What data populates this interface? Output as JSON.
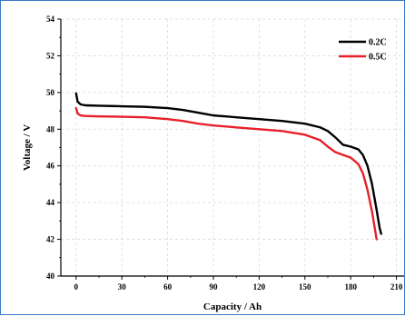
{
  "chart_data": {
    "type": "line",
    "xlabel": "Capacity / Ah",
    "ylabel": "Voltage / V",
    "xlim": [
      -10,
      215
    ],
    "ylim": [
      40,
      54
    ],
    "x_ticks": [
      0,
      30,
      60,
      90,
      120,
      150,
      180,
      210
    ],
    "y_ticks": [
      40,
      42,
      44,
      46,
      48,
      50,
      52,
      54
    ],
    "grid": true,
    "legend_position": "top-right",
    "series": [
      {
        "name": "0.2C",
        "color": "#000000",
        "x": [
          0,
          1,
          3,
          6,
          15,
          30,
          45,
          60,
          70,
          80,
          90,
          105,
          120,
          135,
          150,
          160,
          165,
          170,
          175,
          180,
          185,
          188,
          191,
          194,
          197,
          199,
          200
        ],
        "y": [
          49.95,
          49.5,
          49.35,
          49.3,
          49.28,
          49.25,
          49.22,
          49.15,
          49.05,
          48.9,
          48.75,
          48.65,
          48.55,
          48.45,
          48.3,
          48.1,
          47.9,
          47.55,
          47.15,
          47.05,
          46.9,
          46.6,
          46.0,
          45.0,
          43.6,
          42.6,
          42.3
        ]
      },
      {
        "name": "0.5C",
        "color": "#e8202a",
        "x": [
          0,
          1,
          3,
          6,
          15,
          30,
          45,
          60,
          70,
          80,
          90,
          105,
          120,
          135,
          150,
          160,
          165,
          170,
          175,
          180,
          185,
          188,
          191,
          194,
          196,
          197
        ],
        "y": [
          49.15,
          48.85,
          48.75,
          48.72,
          48.7,
          48.68,
          48.65,
          48.55,
          48.45,
          48.3,
          48.2,
          48.1,
          48.0,
          47.9,
          47.7,
          47.4,
          47.05,
          46.75,
          46.6,
          46.45,
          46.1,
          45.6,
          44.7,
          43.5,
          42.5,
          42.0
        ]
      }
    ]
  }
}
